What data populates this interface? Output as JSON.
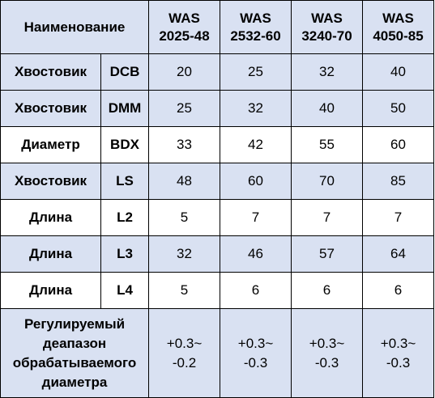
{
  "header": {
    "name_label": "Наименование",
    "models": [
      {
        "line1": "WAS",
        "line2": "2025-48"
      },
      {
        "line1": "WAS",
        "line2": "2532-60"
      },
      {
        "line1": "WAS",
        "line2": "3240-70"
      },
      {
        "line1": "WAS",
        "line2": "4050-85"
      }
    ]
  },
  "rows": [
    {
      "name": "Хвостовик",
      "code": "DCB",
      "values": [
        "20",
        "25",
        "32",
        "40"
      ]
    },
    {
      "name": "Хвостовик",
      "code": "DMM",
      "values": [
        "25",
        "32",
        "40",
        "50"
      ]
    },
    {
      "name": "Диаметр",
      "code": "BDX",
      "values": [
        "33",
        "42",
        "55",
        "60"
      ]
    },
    {
      "name": "Хвостовик",
      "code": "LS",
      "values": [
        "48",
        "60",
        "70",
        "85"
      ]
    },
    {
      "name": "Длина",
      "code": "L2",
      "values": [
        "5",
        "7",
        "7",
        "7"
      ]
    },
    {
      "name": "Длина",
      "code": "L3",
      "values": [
        "32",
        "46",
        "57",
        "64"
      ]
    },
    {
      "name": "Длина",
      "code": "L4",
      "values": [
        "5",
        "6",
        "6",
        "6"
      ]
    }
  ],
  "range": {
    "label_lines": [
      "Регулируемый",
      "деапазон",
      "обрабатываемого",
      "диаметра"
    ],
    "values": [
      {
        "top": "+0.3~",
        "bottom": "-0.2"
      },
      {
        "top": "+0.3~",
        "bottom": "-0.3"
      },
      {
        "top": "+0.3~",
        "bottom": "-0.3"
      },
      {
        "top": "+0.3~",
        "bottom": "-0.3"
      }
    ]
  },
  "colors": {
    "shade": "#d9e1f2",
    "border": "#000000"
  }
}
